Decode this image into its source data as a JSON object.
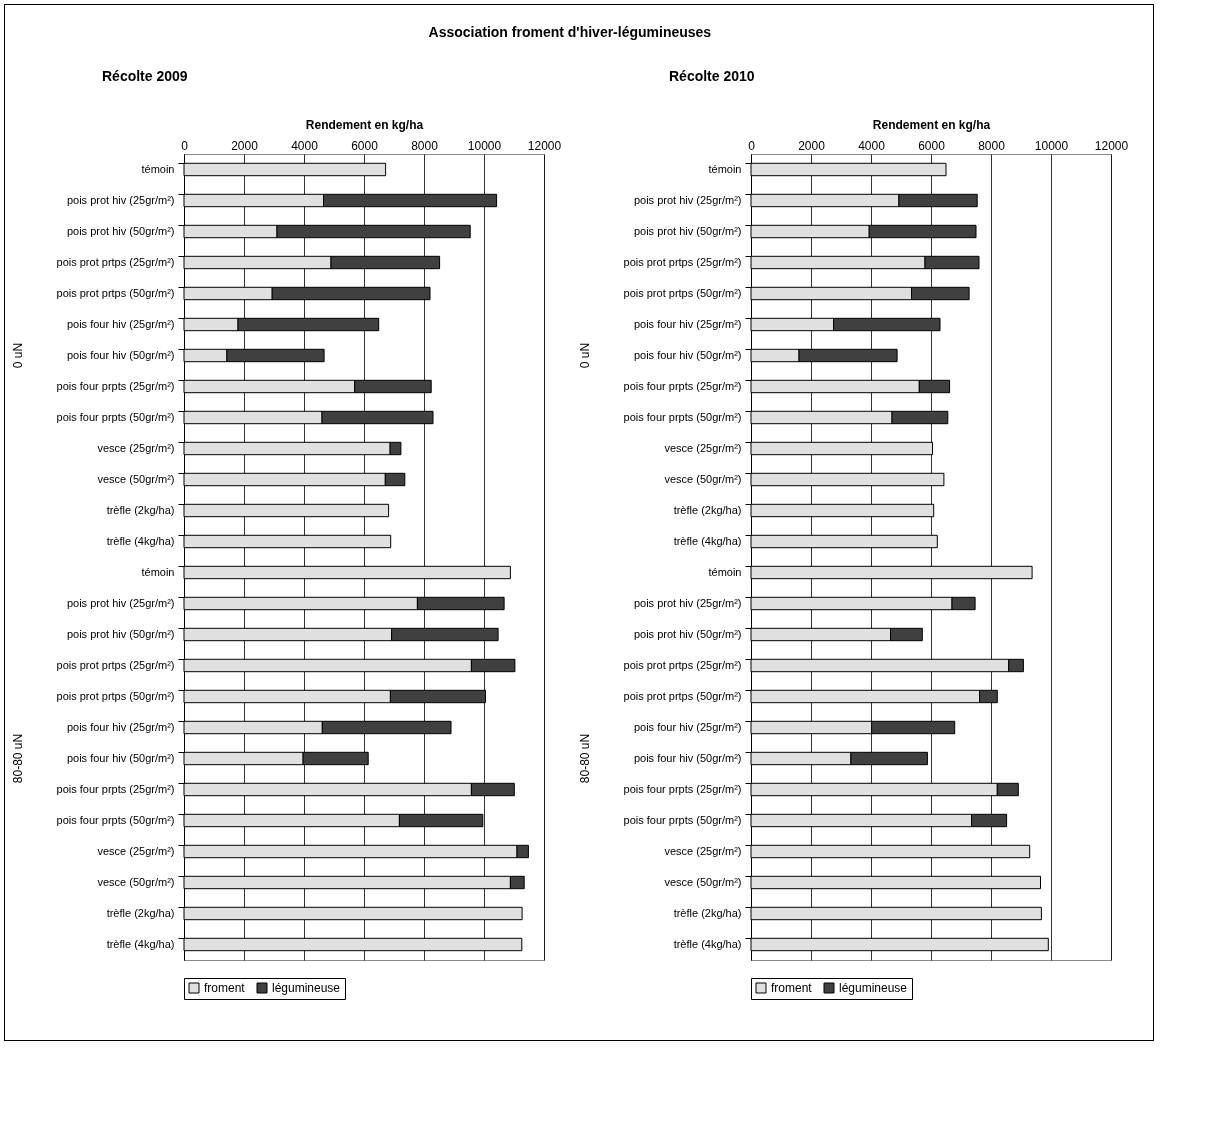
{
  "chart_data": [
    {
      "type": "bar",
      "orientation": "horizontal",
      "stacked": true,
      "title": "Association froment d'hiver-légumineuses",
      "subtitle": "Récolte 2009",
      "xlabel": "Rendement en kg/ha",
      "categories": [
        "témoin",
        "pois prot hiv (25gr/m²)",
        "pois prot hiv (50gr/m²)",
        "pois prot prtps (25gr/m²)",
        "pois prot prtps (50gr/m²)",
        "pois four hiv (25gr/m²)",
        "pois four hiv (50gr/m²)",
        "pois four prpts (25gr/m²)",
        "pois four prpts (50gr/m²)",
        "vesce (25gr/m²)",
        "vesce (50gr/m²)",
        "trèfle (2kg/ha)",
        "trèfle (4kg/ha)",
        "témoin",
        "pois prot hiv (25gr/m²)",
        "pois prot hiv (50gr/m²)",
        "pois prot prtps (25gr/m²)",
        "pois prot prtps (50gr/m²)",
        "pois four hiv (25gr/m²)",
        "pois four hiv (50gr/m²)",
        "pois four prpts (25gr/m²)",
        "pois four prpts (50gr/m²)",
        "vesce (25gr/m²)",
        "vesce (50gr/m²)",
        "trèfle (2kg/ha)",
        "trèfle (4kg/ha)"
      ],
      "series": [
        {
          "name": "froment",
          "color": "#e0e0e0",
          "values": [
            6720,
            4650,
            3100,
            4900,
            2940,
            1800,
            1430,
            5690,
            4600,
            6870,
            6710,
            6820,
            6890,
            10880,
            7780,
            6920,
            9580,
            6880,
            4610,
            3970,
            9580,
            7180,
            11100,
            10880,
            11270,
            11260
          ]
        },
        {
          "name": "légumineuse",
          "color": "#404040",
          "values": [
            null,
            5770,
            6440,
            3620,
            5260,
            4690,
            3240,
            2550,
            3700,
            360,
            650,
            null,
            null,
            null,
            2890,
            3550,
            1450,
            3170,
            4290,
            2170,
            1430,
            2780,
            380,
            460,
            null,
            null
          ]
        }
      ],
      "xlim": [
        0,
        12000
      ],
      "xticks": [
        0,
        2000,
        4000,
        6000,
        8000,
        10000,
        12000
      ],
      "grid": "x",
      "legend": "bottom",
      "annotations": [
        "0 uN",
        "80-80 uN"
      ]
    },
    {
      "type": "bar",
      "orientation": "horizontal",
      "stacked": true,
      "subtitle": "Récolte 2010",
      "xlabel": "Rendement en kg/ha",
      "categories": [
        "témoin",
        "pois prot hiv (25gr/m²)",
        "pois prot hiv (50gr/m²)",
        "pois prot prtps (25gr/m²)",
        "pois prot prtps (50gr/m²)",
        "pois four hiv (25gr/m²)",
        "pois four hiv (50gr/m²)",
        "pois four prpts (25gr/m²)",
        "pois four prpts (50gr/m²)",
        "vesce (25gr/m²)",
        "vesce (50gr/m²)",
        "trèfle (2kg/ha)",
        "trèfle (4kg/ha)",
        "témoin",
        "pois prot hiv (25gr/m²)",
        "pois prot hiv (50gr/m²)",
        "pois prot prtps (25gr/m²)",
        "pois prot prtps (50gr/m²)",
        "pois four hiv (25gr/m²)",
        "pois four hiv (50gr/m²)",
        "pois four prpts (25gr/m²)",
        "pois four prpts (50gr/m²)",
        "vesce (25gr/m²)",
        "vesce (50gr/m²)",
        "trèfle (2kg/ha)",
        "trèfle (4kg/ha)"
      ],
      "series": [
        {
          "name": "froment",
          "color": "#e0e0e0",
          "values": [
            6500,
            4930,
            3940,
            5800,
            5350,
            2750,
            1600,
            5610,
            4700,
            6050,
            6430,
            6090,
            6210,
            9370,
            6700,
            4650,
            8590,
            7620,
            4020,
            3330,
            8210,
            7350,
            9290,
            9650,
            9680,
            9910
          ]
        },
        {
          "name": "légumineuse",
          "color": "#404040",
          "values": [
            null,
            2610,
            3560,
            1800,
            1920,
            3550,
            3270,
            1010,
            1860,
            null,
            null,
            null,
            null,
            null,
            770,
            1060,
            490,
            590,
            2770,
            2550,
            700,
            1170,
            null,
            null,
            null,
            null
          ]
        }
      ],
      "xlim": [
        0,
        12000
      ],
      "xticks": [
        0,
        2000,
        4000,
        6000,
        8000,
        10000,
        12000
      ],
      "grid": "x",
      "legend": "bottom",
      "annotations": [
        "0 uN",
        "80-80 uN"
      ]
    }
  ]
}
